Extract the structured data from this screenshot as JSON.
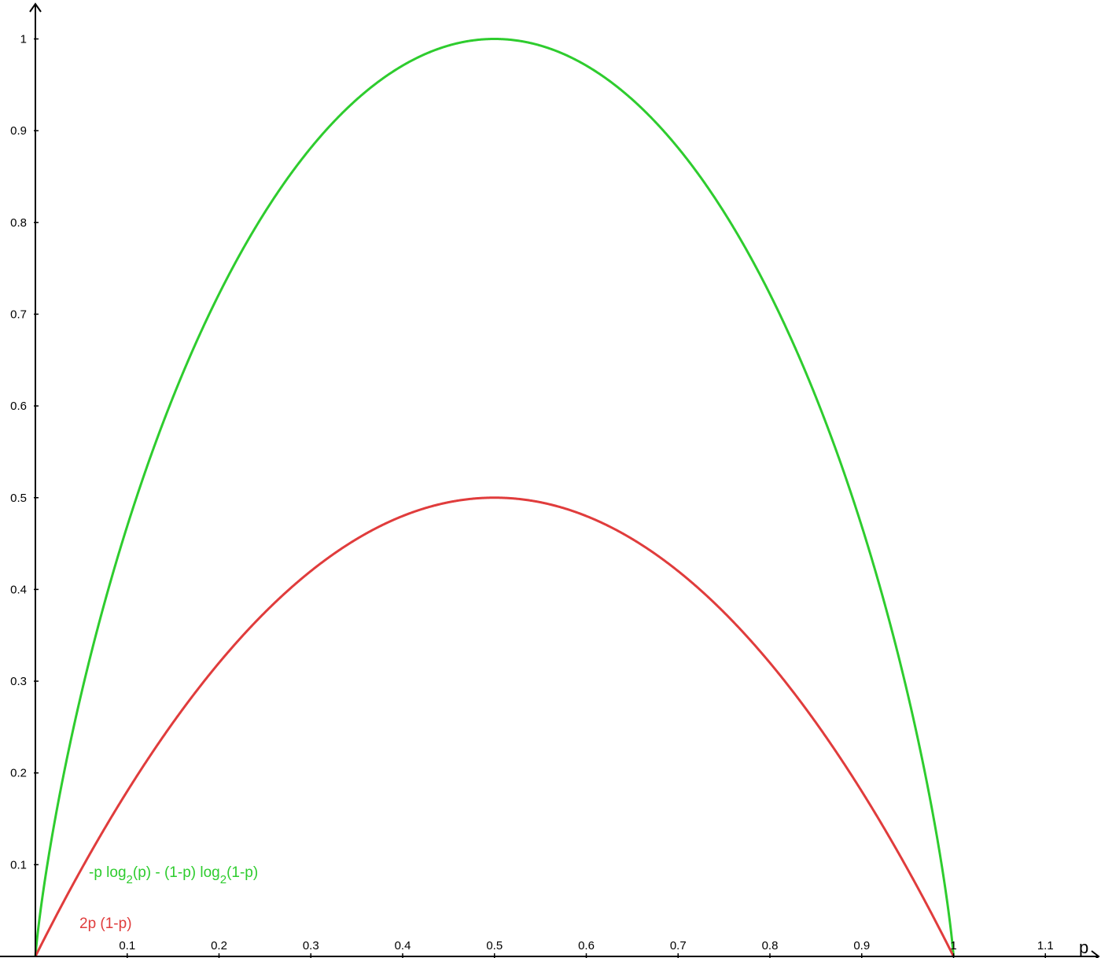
{
  "chart_data": {
    "type": "line",
    "xlabel": "p",
    "ylabel": "",
    "xlim": [
      0,
      1.15
    ],
    "ylim": [
      0,
      1.04
    ],
    "grid": false,
    "x_ticks": [
      {
        "value": 0.1,
        "label": "0.1"
      },
      {
        "value": 0.2,
        "label": "0.2"
      },
      {
        "value": 0.3,
        "label": "0.3"
      },
      {
        "value": 0.4,
        "label": "0.4"
      },
      {
        "value": 0.5,
        "label": "0.5"
      },
      {
        "value": 0.6,
        "label": "0.6"
      },
      {
        "value": 0.7,
        "label": "0.7"
      },
      {
        "value": 0.8,
        "label": "0.8"
      },
      {
        "value": 0.9,
        "label": "0.9"
      },
      {
        "value": 1.0,
        "label": "1"
      },
      {
        "value": 1.1,
        "label": "1.1"
      }
    ],
    "y_ticks": [
      {
        "value": 0.1,
        "label": "0.1"
      },
      {
        "value": 0.2,
        "label": "0.2"
      },
      {
        "value": 0.3,
        "label": "0.3"
      },
      {
        "value": 0.4,
        "label": "0.4"
      },
      {
        "value": 0.5,
        "label": "0.5"
      },
      {
        "value": 0.6,
        "label": "0.6"
      },
      {
        "value": 0.7,
        "label": "0.7"
      },
      {
        "value": 0.8,
        "label": "0.8"
      },
      {
        "value": 0.9,
        "label": "0.9"
      },
      {
        "value": 1.0,
        "label": "1"
      }
    ],
    "x": [
      0,
      0.01,
      0.05,
      0.1,
      0.15,
      0.2,
      0.25,
      0.3,
      0.35,
      0.4,
      0.45,
      0.5,
      0.55,
      0.6,
      0.65,
      0.7,
      0.75,
      0.8,
      0.85,
      0.9,
      0.95,
      0.99,
      1
    ],
    "series": [
      {
        "key": "entropy",
        "name_parts": [
          "-p log",
          "2",
          "(p) - (1-p) log",
          "2",
          "(1-p)"
        ],
        "color": "#2ecc2e",
        "values": [
          0,
          0.081,
          0.286,
          0.469,
          0.61,
          0.722,
          0.811,
          0.881,
          0.934,
          0.971,
          0.993,
          1.0,
          0.993,
          0.971,
          0.934,
          0.881,
          0.811,
          0.722,
          0.61,
          0.469,
          0.286,
          0.081,
          0
        ]
      },
      {
        "key": "gini",
        "name_parts": [
          "2p (1-p)"
        ],
        "color": "#e03c3c",
        "values": [
          0,
          0.0198,
          0.095,
          0.18,
          0.255,
          0.32,
          0.375,
          0.42,
          0.455,
          0.48,
          0.495,
          0.5,
          0.495,
          0.48,
          0.455,
          0.42,
          0.375,
          0.32,
          0.255,
          0.18,
          0.095,
          0.0198,
          0
        ]
      }
    ]
  }
}
